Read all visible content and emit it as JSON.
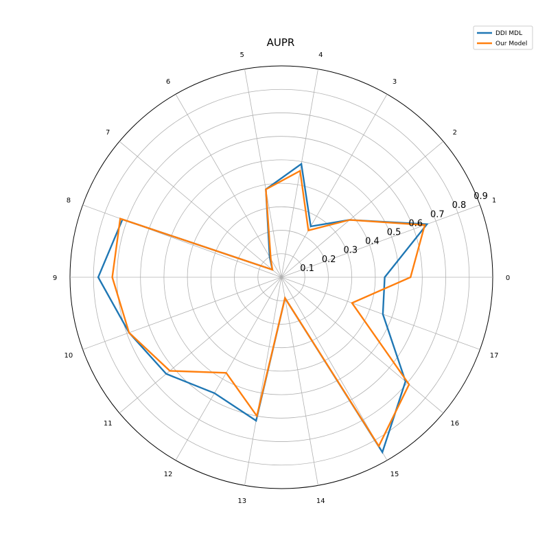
{
  "chart_data": {
    "type": "radar",
    "title": "AUPR",
    "categories": [
      "0",
      "1",
      "2",
      "3",
      "4",
      "5",
      "6",
      "7",
      "8",
      "9",
      "10",
      "11",
      "12",
      "13",
      "14",
      "15",
      "16",
      "17"
    ],
    "r_ticks": [
      0.1,
      0.2,
      0.3,
      0.4,
      0.5,
      0.6,
      0.7,
      0.8,
      0.9
    ],
    "r_tick_labels": [
      "0.1",
      "0.2",
      "0.3",
      "0.4",
      "0.5",
      "0.6",
      "0.7",
      "0.8",
      "0.9"
    ],
    "rlim": [
      0,
      0.9
    ],
    "grid": true,
    "legend_position": "top-right",
    "series": [
      {
        "name": "DDI MDL",
        "color": "#1f77b4",
        "values": [
          0.44,
          0.66,
          0.38,
          0.25,
          0.49,
          0.38,
          0.1,
          0.05,
          0.72,
          0.78,
          0.69,
          0.64,
          0.57,
          0.62,
          0.09,
          0.86,
          0.69,
          0.46
        ]
      },
      {
        "name": "Our Model",
        "color": "#ff7f0e",
        "values": [
          0.55,
          0.65,
          0.38,
          0.23,
          0.46,
          0.38,
          0.09,
          0.05,
          0.73,
          0.72,
          0.69,
          0.62,
          0.47,
          0.6,
          0.09,
          0.83,
          0.71,
          0.32
        ]
      }
    ]
  }
}
